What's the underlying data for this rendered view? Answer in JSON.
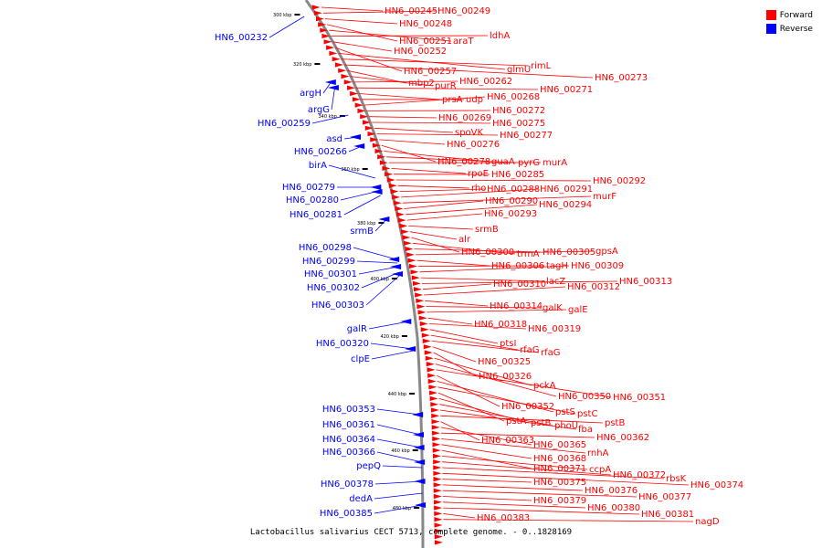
{
  "legend": {
    "forward": {
      "label": "Forward",
      "color": "#ff0000"
    },
    "reverse": {
      "label": "Reverse",
      "color": "#0000ff"
    }
  },
  "caption": "Lactobacillus salivarius CECT 5713, complete genome. - 0..1828169",
  "ticks": [
    "300 kbp",
    "320 kbp",
    "340 kbp",
    "360 kbp",
    "380 kbp",
    "400 kbp",
    "420 kbp",
    "440 kbp",
    "460 kbp",
    "480 kbp"
  ],
  "reverse_labels": [
    "HN6_00232",
    "argH",
    "argG",
    "HN6_00259",
    "asd",
    "HN6_00266",
    "birA",
    "HN6_00279",
    "HN6_00280",
    "HN6_00281",
    "srmB",
    "HN6_00298",
    "HN6_00299",
    "HN6_00301",
    "HN6_00302",
    "HN6_00303",
    "galR",
    "HN6_00320",
    "clpE",
    "HN6_00353",
    "HN6_00361",
    "HN6_00364",
    "HN6_00366",
    "pepQ",
    "HN6_00378",
    "dedA",
    "HN6_00385"
  ],
  "forward_labels": [
    "HN6_00245",
    "HN6_00249",
    "HN6_00248",
    "HN6_00251",
    "araT",
    "ldhA",
    "HN6_00252",
    "HN6_00257",
    "glmU",
    "rimL",
    "HN6_00273",
    "mbp2",
    "purR",
    "HN6_00262",
    "HN6_00271",
    "prsA",
    "udp",
    "HN6_00268",
    "HN6_00272",
    "HN6_00269",
    "HN6_00275",
    "spoVK",
    "HN6_00277",
    "HN6_00276",
    "HN6_00278",
    "guaA",
    "pyrG",
    "murA",
    "rpoE",
    "HN6_00285",
    "HN6_00292",
    "rho",
    "HN6_00288",
    "HN6_00291",
    "murF",
    "HN6_00290",
    "HN6_00294",
    "HN6_00293",
    "srmB",
    "alr",
    "HN6_00300",
    "trmA",
    "HN6_00305",
    "gpsA",
    "HN6_00306",
    "tagH",
    "HN6_00309",
    "lacZ",
    "HN6_00313",
    "HN6_00310",
    "HN6_00312",
    "HN6_00314",
    "galK",
    "galE",
    "HN6_00318",
    "HN6_00319",
    "ptsI",
    "rfaG",
    "rfaG",
    "HN6_00325",
    "HN6_00326",
    "pckA",
    "HN6_00350",
    "HN6_00351",
    "HN6_00352",
    "pstS",
    "pstC",
    "pstA",
    "pstB",
    "phoU",
    "fba",
    "pstB",
    "HN6_00363",
    "HN6_00365",
    "HN6_00362",
    "rnhA",
    "HN6_00368",
    "HN6_00371",
    "ccpA",
    "HN6_00372",
    "rbsK",
    "HN6_00374",
    "HN6_00375",
    "HN6_00376",
    "HN6_00377",
    "HN6_00379",
    "HN6_00380",
    "HN6_00381",
    "HN6_00383",
    "nagD"
  ]
}
